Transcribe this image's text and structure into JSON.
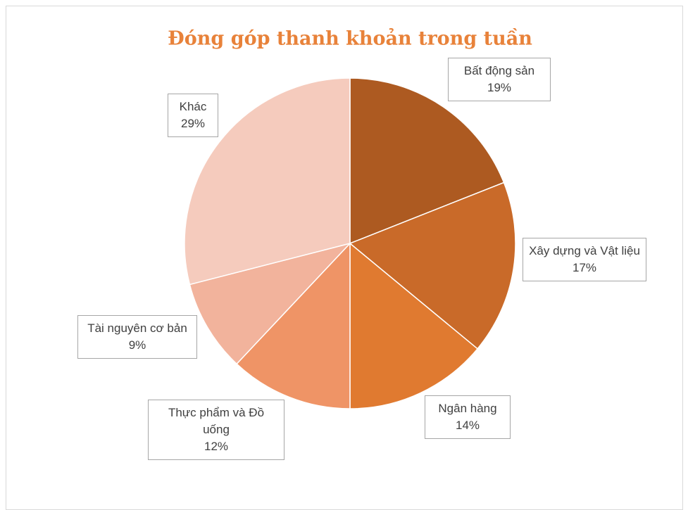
{
  "chart_data": {
    "type": "pie",
    "title": "Đóng góp thanh khoản trong tuần",
    "categories": [
      "Bất động sản",
      "Xây dựng và Vật liệu",
      "Ngân hàng",
      "Thực phẩm và Đồ uống",
      "Tài nguyên cơ bản",
      "Khác"
    ],
    "values": [
      19,
      17,
      14,
      12,
      9,
      29
    ],
    "value_labels": [
      "19%",
      "17%",
      "14%",
      "12%",
      "9%",
      "29%"
    ],
    "colors": [
      "#ad5a21",
      "#c96a29",
      "#e07a30",
      "#ef9466",
      "#f2b39c",
      "#f5cbbd"
    ]
  }
}
